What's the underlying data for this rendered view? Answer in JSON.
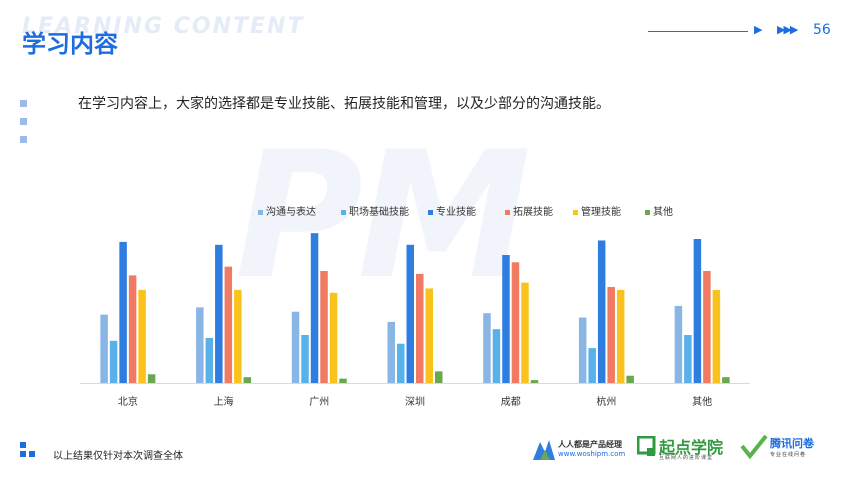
{
  "header": {
    "bg_word": "LEARNING CONTENT",
    "title": "学习内容",
    "page_number": "56"
  },
  "intro_text": "在学习内容上，大家的选择都是专业技能、拓展技能和管理，以及少部分的沟通技能。",
  "watermark": "PM",
  "footer": {
    "note": "以上结果仅针对本次调查全体",
    "logos": {
      "woshipm_name": "人人都是产品经理",
      "woshipm_url": "www.woshipm.com",
      "qidian_name": "起点学院",
      "qidian_tagline": "互联网人的进阶课堂",
      "wenjuan_name": "腾讯问卷",
      "wenjuan_tagline": "专业在线问卷"
    }
  },
  "colors": {
    "accent": "#1d6de0",
    "series": [
      "#8ab6e6",
      "#5ab0e8",
      "#2f7de1",
      "#f07b62",
      "#fac31c",
      "#6aa84f"
    ]
  },
  "chart_data": {
    "type": "bar",
    "categories": [
      "北京",
      "上海",
      "广州",
      "深圳",
      "成都",
      "杭州",
      "其他"
    ],
    "series": [
      {
        "name": "沟通与表达",
        "values": [
          47,
          52,
          49,
          42,
          48,
          45,
          53
        ]
      },
      {
        "name": "职场基础技能",
        "values": [
          29,
          31,
          33,
          27,
          37,
          24,
          33
        ]
      },
      {
        "name": "专业技能",
        "values": [
          97,
          95,
          103,
          95,
          88,
          98,
          99
        ]
      },
      {
        "name": "拓展技能",
        "values": [
          74,
          80,
          77,
          75,
          83,
          66,
          77
        ]
      },
      {
        "name": "管理技能",
        "values": [
          64,
          64,
          62,
          65,
          69,
          64,
          64
        ]
      },
      {
        "name": "其他",
        "values": [
          6,
          4,
          3,
          8,
          2,
          5,
          4
        ]
      }
    ],
    "ylim": [
      0,
      110
    ],
    "grid": false,
    "legend": "top"
  }
}
